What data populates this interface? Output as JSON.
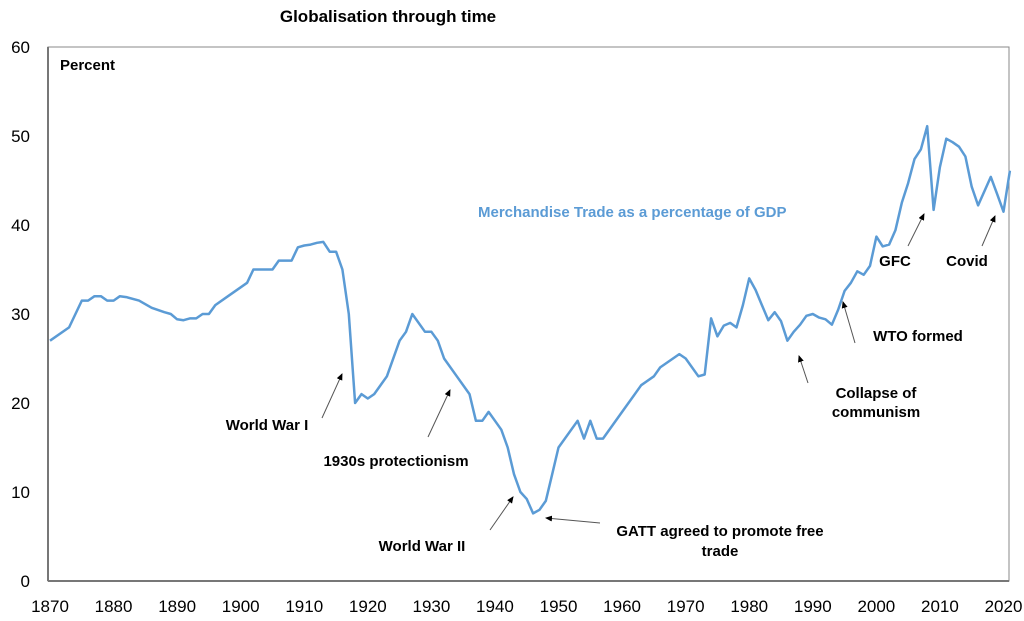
{
  "chart_data": {
    "type": "line",
    "title": "Globalisation through time",
    "ylabel": "Percent",
    "xlabel": "",
    "xlim": [
      1870,
      2021
    ],
    "ylim": [
      0,
      60
    ],
    "x_ticks": [
      1870,
      1880,
      1890,
      1900,
      1910,
      1920,
      1930,
      1940,
      1950,
      1960,
      1970,
      1980,
      1990,
      2000,
      2010,
      2020
    ],
    "y_ticks": [
      0,
      10,
      20,
      30,
      40,
      50,
      60
    ],
    "grid": false,
    "line_color": "#5B9BD5",
    "series": [
      {
        "name": "Merchandise Trade as a percentage of GDP",
        "x": [
          1870,
          1873,
          1875,
          1876,
          1877,
          1878,
          1879,
          1880,
          1881,
          1882,
          1884,
          1886,
          1888,
          1889,
          1890,
          1891,
          1892,
          1893,
          1894,
          1895,
          1896,
          1898,
          1900,
          1901,
          1902,
          1905,
          1906,
          1908,
          1909,
          1910,
          1911,
          1912,
          1913,
          1914,
          1915,
          1916,
          1917,
          1918,
          1919,
          1920,
          1921,
          1923,
          1925,
          1926,
          1927,
          1929,
          1930,
          1931,
          1932,
          1934,
          1936,
          1937,
          1938,
          1939,
          1940,
          1941,
          1942,
          1943,
          1944,
          1945,
          1946,
          1947,
          1948,
          1949,
          1950,
          1953,
          1954,
          1955,
          1956,
          1957,
          1960,
          1963,
          1965,
          1966,
          1969,
          1970,
          1972,
          1973,
          1974,
          1975,
          1976,
          1977,
          1978,
          1979,
          1980,
          1981,
          1982,
          1983,
          1984,
          1985,
          1986,
          1987,
          1988,
          1989,
          1990,
          1991,
          1992,
          1993,
          1994,
          1995,
          1996,
          1997,
          1998,
          1999,
          2000,
          2001,
          2002,
          2003,
          2004,
          2005,
          2006,
          2007,
          2008,
          2009,
          2010,
          2011,
          2012,
          2013,
          2014,
          2015,
          2016,
          2017,
          2018,
          2019,
          2020,
          2021
        ],
        "y": [
          27,
          28.5,
          31.5,
          31.5,
          32,
          32,
          31.5,
          31.5,
          32,
          31.9,
          31.5,
          30.7,
          30.2,
          30,
          29.4,
          29.3,
          29.5,
          29.5,
          30,
          30,
          31,
          32,
          33,
          33.5,
          35,
          35,
          36,
          36,
          37.5,
          37.7,
          37.8,
          38,
          38.1,
          37,
          37,
          35,
          30,
          20,
          21,
          20.5,
          21,
          23,
          27,
          28,
          30,
          28,
          28,
          27,
          25,
          23,
          21,
          18,
          18,
          19,
          18,
          17,
          15,
          12,
          10,
          9.2,
          7.6,
          8,
          9,
          12,
          15,
          18,
          16,
          18,
          16,
          16,
          19,
          22,
          23,
          24,
          25.5,
          25,
          23,
          23.2,
          29.5,
          27.5,
          28.7,
          29,
          28.5,
          31,
          34,
          32.7,
          31,
          29.3,
          30.2,
          29.2,
          27,
          28,
          28.8,
          29.8,
          30,
          29.6,
          29.4,
          28.8,
          30.5,
          32.6,
          33.5,
          34.8,
          34.4,
          35.4,
          38.7,
          37.6,
          37.8,
          39.4,
          42.5,
          44.7,
          47.4,
          48.5,
          51.1,
          41.7,
          46.5,
          49.7,
          49.3,
          48.8,
          47.7,
          44.3,
          42.2,
          43.8,
          45.4,
          43.5,
          41.5,
          46.1
        ]
      }
    ],
    "annotations": [
      {
        "id": "ww1",
        "text": [
          "World War I"
        ]
      },
      {
        "id": "protectionism",
        "text": [
          "1930s protectionism"
        ]
      },
      {
        "id": "ww2",
        "text": [
          "World War II"
        ]
      },
      {
        "id": "gatt",
        "text": [
          "GATT agreed to promote free",
          "trade"
        ]
      },
      {
        "id": "communism",
        "text": [
          "Collapse of",
          "communism"
        ]
      },
      {
        "id": "wto",
        "text": [
          "WTO formed"
        ]
      },
      {
        "id": "gfc",
        "text": [
          "GFC"
        ]
      },
      {
        "id": "covid",
        "text": [
          "Covid"
        ]
      }
    ]
  }
}
